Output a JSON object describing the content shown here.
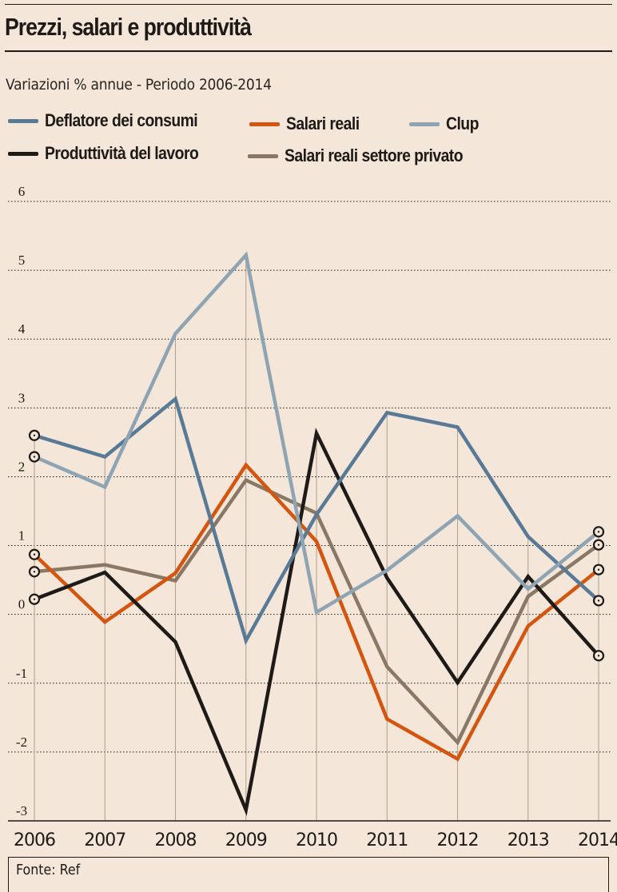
{
  "header": {
    "title": "Prezzi, salari e produttività",
    "subtitle": "Variazioni % annue - Periodo 2006-2014"
  },
  "footer": {
    "source": "Fonte: Ref"
  },
  "chart_data": {
    "type": "line",
    "title": "Prezzi, salari e produttività",
    "subtitle": "Variazioni % annue - Periodo 2006-2014",
    "xlabel": "",
    "ylabel": "",
    "x": [
      "2006",
      "2007",
      "2008",
      "2009",
      "2010",
      "2011",
      "2012",
      "2013",
      "2014"
    ],
    "ylim": [
      -3,
      6
    ],
    "yticks": [
      -3,
      -2,
      -1,
      0,
      1,
      2,
      3,
      4,
      5,
      6
    ],
    "ytick_labels": [
      "-3",
      "-2",
      "-1",
      "0",
      "1",
      "2",
      "3",
      "4",
      "5",
      "6"
    ],
    "grid": "horizontal-dotted",
    "legend_position": "top",
    "endpoint_markers": true,
    "series": [
      {
        "name": "Deflatore dei consumi",
        "color": "#587a96",
        "values": [
          2.6,
          2.29,
          3.13,
          -0.38,
          1.45,
          2.93,
          2.72,
          1.13,
          0.2
        ]
      },
      {
        "name": "Salari reali",
        "color": "#d4550f",
        "values": [
          0.87,
          -0.11,
          0.6,
          2.17,
          1.06,
          -1.52,
          -2.1,
          -0.17,
          0.65
        ]
      },
      {
        "name": "Clup",
        "color": "#8ea4b3",
        "values": [
          2.29,
          1.85,
          4.08,
          5.22,
          0.03,
          0.64,
          1.43,
          0.37,
          1.2
        ]
      },
      {
        "name": "Produttività del lavoro",
        "color": "#1e1a17",
        "values": [
          0.22,
          0.61,
          -0.4,
          -2.84,
          2.63,
          0.53,
          -0.99,
          0.55,
          -0.6
        ]
      },
      {
        "name": "Salari reali settore privato",
        "color": "#8a7866",
        "values": [
          0.62,
          0.72,
          0.49,
          1.95,
          1.47,
          -0.76,
          -1.86,
          0.26,
          1.01
        ]
      }
    ]
  }
}
